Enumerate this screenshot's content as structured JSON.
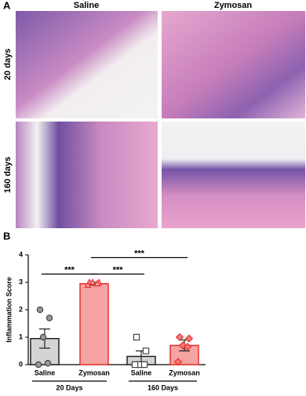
{
  "panel_a": {
    "label": "A",
    "columns": [
      "Saline",
      "Zymosan"
    ],
    "rows": [
      "20 days",
      "160 days"
    ]
  },
  "chart_data": {
    "type": "bar",
    "panel_label": "B",
    "y_label": "Inflammation Score",
    "categories": [
      "Saline",
      "Zymosan",
      "Saline",
      "Zymosan"
    ],
    "groups": [
      "20 Days",
      "160 Days"
    ],
    "values": [
      0.95,
      2.95,
      0.3,
      0.7
    ],
    "errors": [
      0.35,
      0.05,
      0.2,
      0.2
    ],
    "points": [
      [
        2.0,
        1.7,
        1.0,
        0.05,
        0.0
      ],
      [
        3.0,
        3.0,
        3.0,
        2.95,
        2.9
      ],
      [
        1.0,
        0.5,
        0.0,
        0.0,
        0.0
      ],
      [
        1.0,
        0.95,
        0.7,
        0.65,
        0.1
      ]
    ],
    "colors": [
      "#d4d4d4",
      "#f6a3a3",
      "#d4d4d4",
      "#f6a3a3"
    ],
    "edge_colors": [
      "#222222",
      "#e8312a",
      "#222222",
      "#e8312a"
    ],
    "point_colors": [
      "#9a9a9a",
      "#f6a3a3",
      "#ffffff",
      "#f07a74"
    ],
    "markers": [
      "circle",
      "triangle",
      "square",
      "diamond"
    ],
    "ylim": [
      0,
      4
    ],
    "yticks": [
      0,
      1,
      2,
      3,
      4
    ],
    "significance": [
      {
        "label": "***",
        "from": 0,
        "to": 1,
        "y": 3.3
      },
      {
        "label": "***",
        "from": 1,
        "to": 2,
        "y": 3.3
      },
      {
        "label": "***",
        "from": 1,
        "to": 3,
        "y": 3.9
      }
    ]
  }
}
